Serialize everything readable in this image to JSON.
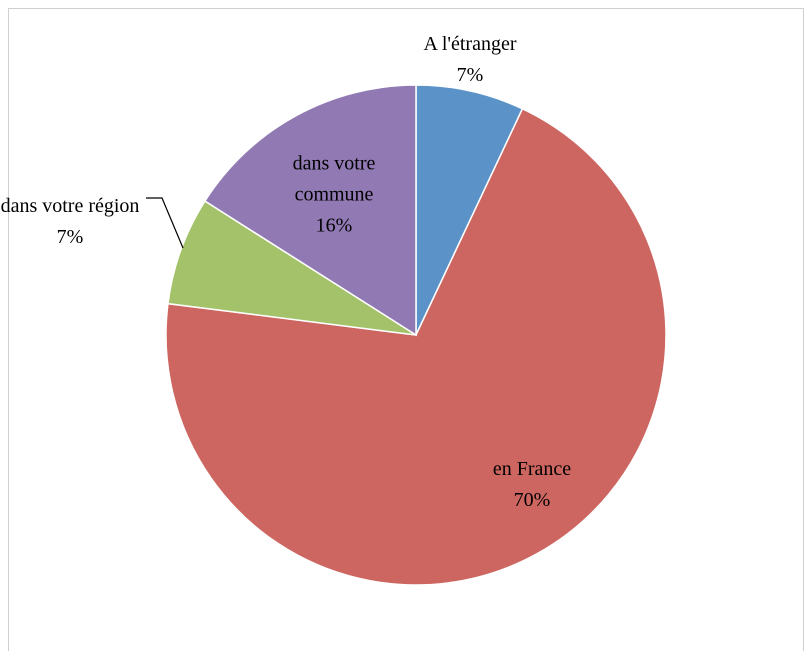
{
  "chart_data": {
    "type": "pie",
    "categories": [
      "A l'étranger",
      "en France",
      "dans votre région",
      "dans votre commune"
    ],
    "values": [
      7,
      70,
      7,
      16
    ],
    "value_labels": [
      "7%",
      "70%",
      "7%",
      "16%"
    ],
    "colors": [
      "#5b93c8",
      "#cd6660",
      "#a3c26a",
      "#917ab4"
    ]
  }
}
